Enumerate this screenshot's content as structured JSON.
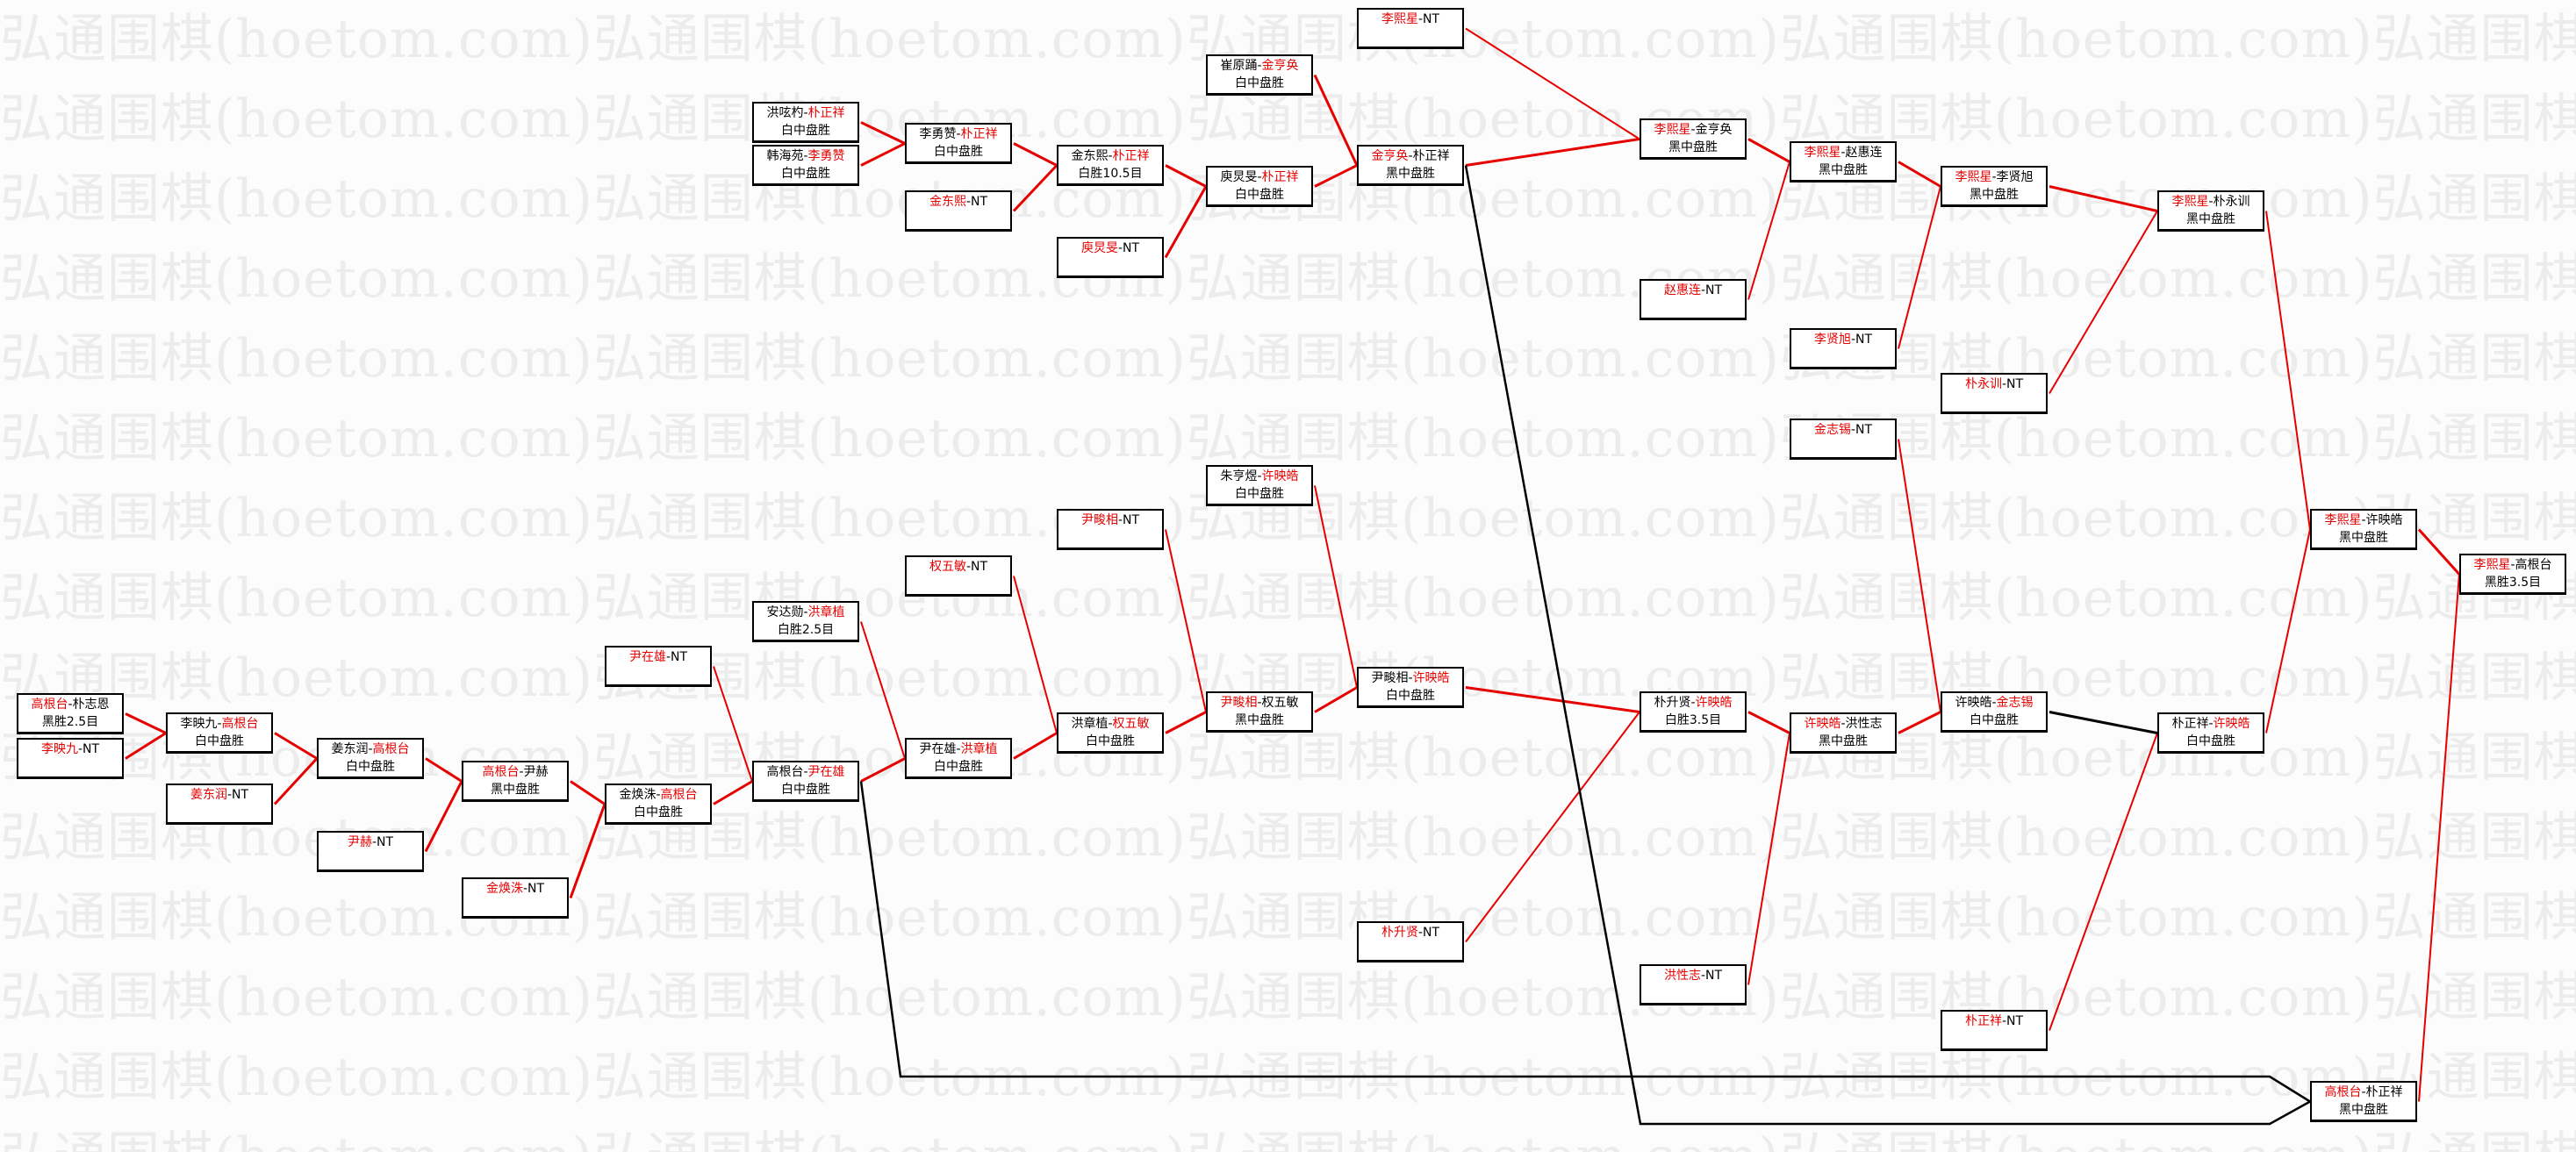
{
  "watermark": "弘通围棋(hoetom.com)",
  "colors": {
    "winner": "#e60000",
    "line_win": "#e60000",
    "line_loss": "#000000",
    "box_border": "#000000"
  },
  "matches": [
    {
      "id": "a1",
      "p1": "高根台",
      "p2": "朴志恩",
      "winner": 1,
      "result": "黑胜2.5目"
    },
    {
      "id": "a2",
      "p1": "李映九",
      "p2": "NT",
      "winner": 1,
      "result": ""
    },
    {
      "id": "b1",
      "p1": "李映九",
      "p2": "高根台",
      "winner": 2,
      "result": "白中盘胜"
    },
    {
      "id": "b2",
      "p1": "姜东润",
      "p2": "NT",
      "winner": 1,
      "result": ""
    },
    {
      "id": "c1",
      "p1": "姜东润",
      "p2": "高根台",
      "winner": 2,
      "result": "白中盘胜"
    },
    {
      "id": "c2",
      "p1": "尹赫",
      "p2": "NT",
      "winner": 1,
      "result": ""
    },
    {
      "id": "d1",
      "p1": "高根台",
      "p2": "尹赫",
      "winner": 1,
      "result": "黑中盘胜"
    },
    {
      "id": "d2",
      "p1": "金焕洙",
      "p2": "NT",
      "winner": 1,
      "result": ""
    },
    {
      "id": "e1",
      "p1": "尹在雄",
      "p2": "NT",
      "winner": 1,
      "result": ""
    },
    {
      "id": "e2",
      "p1": "金焕洙",
      "p2": "高根台",
      "winner": 2,
      "result": "白中盘胜"
    },
    {
      "id": "f1",
      "p1": "安达勋",
      "p2": "洪章植",
      "winner": 2,
      "result": "白胜2.5目"
    },
    {
      "id": "f2",
      "p1": "高根台",
      "p2": "尹在雄",
      "winner": 2,
      "result": "白中盘胜"
    },
    {
      "id": "g1",
      "p1": "权五敏",
      "p2": "NT",
      "winner": 1,
      "result": ""
    },
    {
      "id": "g2",
      "p1": "尹在雄",
      "p2": "洪章植",
      "winner": 2,
      "result": "白中盘胜"
    },
    {
      "id": "h1",
      "p1": "尹畯相",
      "p2": "NT",
      "winner": 1,
      "result": ""
    },
    {
      "id": "h2",
      "p1": "洪章植",
      "p2": "权五敏",
      "winner": 2,
      "result": "白中盘胜"
    },
    {
      "id": "i1",
      "p1": "朱亨煜",
      "p2": "许映皓",
      "winner": 2,
      "result": "白中盘胜"
    },
    {
      "id": "i2",
      "p1": "尹畯相",
      "p2": "权五敏",
      "winner": 1,
      "result": "黑中盘胜"
    },
    {
      "id": "j1",
      "p1": "尹畯相",
      "p2": "许映皓",
      "winner": 2,
      "result": "白中盘胜"
    },
    {
      "id": "j2",
      "p1": "朴升贤",
      "p2": "NT",
      "winner": 1,
      "result": ""
    },
    {
      "id": "k1",
      "p1": "朴升贤",
      "p2": "许映皓",
      "winner": 2,
      "result": "白胜3.5目"
    },
    {
      "id": "k2",
      "p1": "洪性志",
      "p2": "NT",
      "winner": 1,
      "result": ""
    },
    {
      "id": "l1",
      "p1": "许映皓",
      "p2": "洪性志",
      "winner": 1,
      "result": "黑中盘胜"
    },
    {
      "id": "l2",
      "p1": "金志锡",
      "p2": "NT",
      "winner": 1,
      "result": ""
    },
    {
      "id": "m1",
      "p1": "许映皓",
      "p2": "金志锡",
      "winner": 2,
      "result": "白中盘胜"
    },
    {
      "id": "m2",
      "p1": "朴正祥",
      "p2": "NT",
      "winner": 1,
      "result": ""
    },
    {
      "id": "n1",
      "p1": "朴正祥",
      "p2": "许映皓",
      "winner": 2,
      "result": "白中盘胜"
    },
    {
      "id": "t1",
      "p1": "洪呟杓",
      "p2": "朴正祥",
      "winner": 2,
      "result": "白中盘胜"
    },
    {
      "id": "t2",
      "p1": "韩海苑",
      "p2": "李勇赞",
      "winner": 2,
      "result": "白中盘胜"
    },
    {
      "id": "t3",
      "p1": "李勇赞",
      "p2": "朴正祥",
      "winner": 2,
      "result": "白中盘胜"
    },
    {
      "id": "t4",
      "p1": "金东熙",
      "p2": "NT",
      "winner": 1,
      "result": ""
    },
    {
      "id": "t5",
      "p1": "金东熙",
      "p2": "朴正祥",
      "winner": 2,
      "result": "白胜10.5目"
    },
    {
      "id": "t6",
      "p1": "庾炅旻",
      "p2": "NT",
      "winner": 1,
      "result": ""
    },
    {
      "id": "t7",
      "p1": "崔原踊",
      "p2": "金亨奂",
      "winner": 2,
      "result": "白中盘胜"
    },
    {
      "id": "t8",
      "p1": "庾炅旻",
      "p2": "朴正祥",
      "winner": 2,
      "result": "白中盘胜"
    },
    {
      "id": "t9",
      "p1": "李熙星",
      "p2": "NT",
      "winner": 1,
      "result": ""
    },
    {
      "id": "t10",
      "p1": "金亨奂",
      "p2": "朴正祥",
      "winner": 1,
      "result": "黑中盘胜"
    },
    {
      "id": "t11",
      "p1": "李熙星",
      "p2": "金亨奂",
      "winner": 1,
      "result": "黑中盘胜"
    },
    {
      "id": "t12",
      "p1": "赵惠连",
      "p2": "NT",
      "winner": 1,
      "result": ""
    },
    {
      "id": "t13",
      "p1": "李熙星",
      "p2": "赵惠连",
      "winner": 1,
      "result": "黑中盘胜"
    },
    {
      "id": "t14",
      "p1": "李贤旭",
      "p2": "NT",
      "winner": 1,
      "result": ""
    },
    {
      "id": "t15",
      "p1": "李熙星",
      "p2": "李贤旭",
      "winner": 1,
      "result": "黑中盘胜"
    },
    {
      "id": "t16",
      "p1": "朴永训",
      "p2": "NT",
      "winner": 1,
      "result": ""
    },
    {
      "id": "t17",
      "p1": "李熙星",
      "p2": "朴永训",
      "winner": 1,
      "result": "黑中盘胜"
    },
    {
      "id": "r1",
      "p1": "李熙星",
      "p2": "许映皓",
      "winner": 1,
      "result": "黑中盘胜"
    },
    {
      "id": "r2",
      "p1": "李熙星",
      "p2": "高根台",
      "winner": 1,
      "result": "黑胜3.5目"
    },
    {
      "id": "r3",
      "p1": "高根台",
      "p2": "朴正祥",
      "winner": 1,
      "result": "黑中盘胜"
    }
  ]
}
